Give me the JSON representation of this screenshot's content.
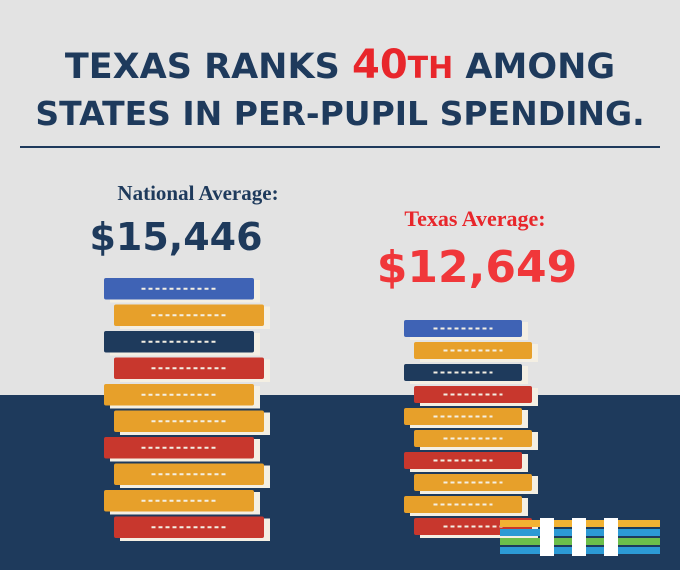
{
  "title": {
    "line1_start": "TEXAS RANKS",
    "rank": "40",
    "rank_suffix": "TH",
    "line1_end": "AMONG",
    "line2": "STATES IN PER-PUPIL SPENDING."
  },
  "national": {
    "label": "National Average:",
    "value": "$15,446"
  },
  "texas": {
    "label": "Texas Average:",
    "value": "$12,649"
  }
}
